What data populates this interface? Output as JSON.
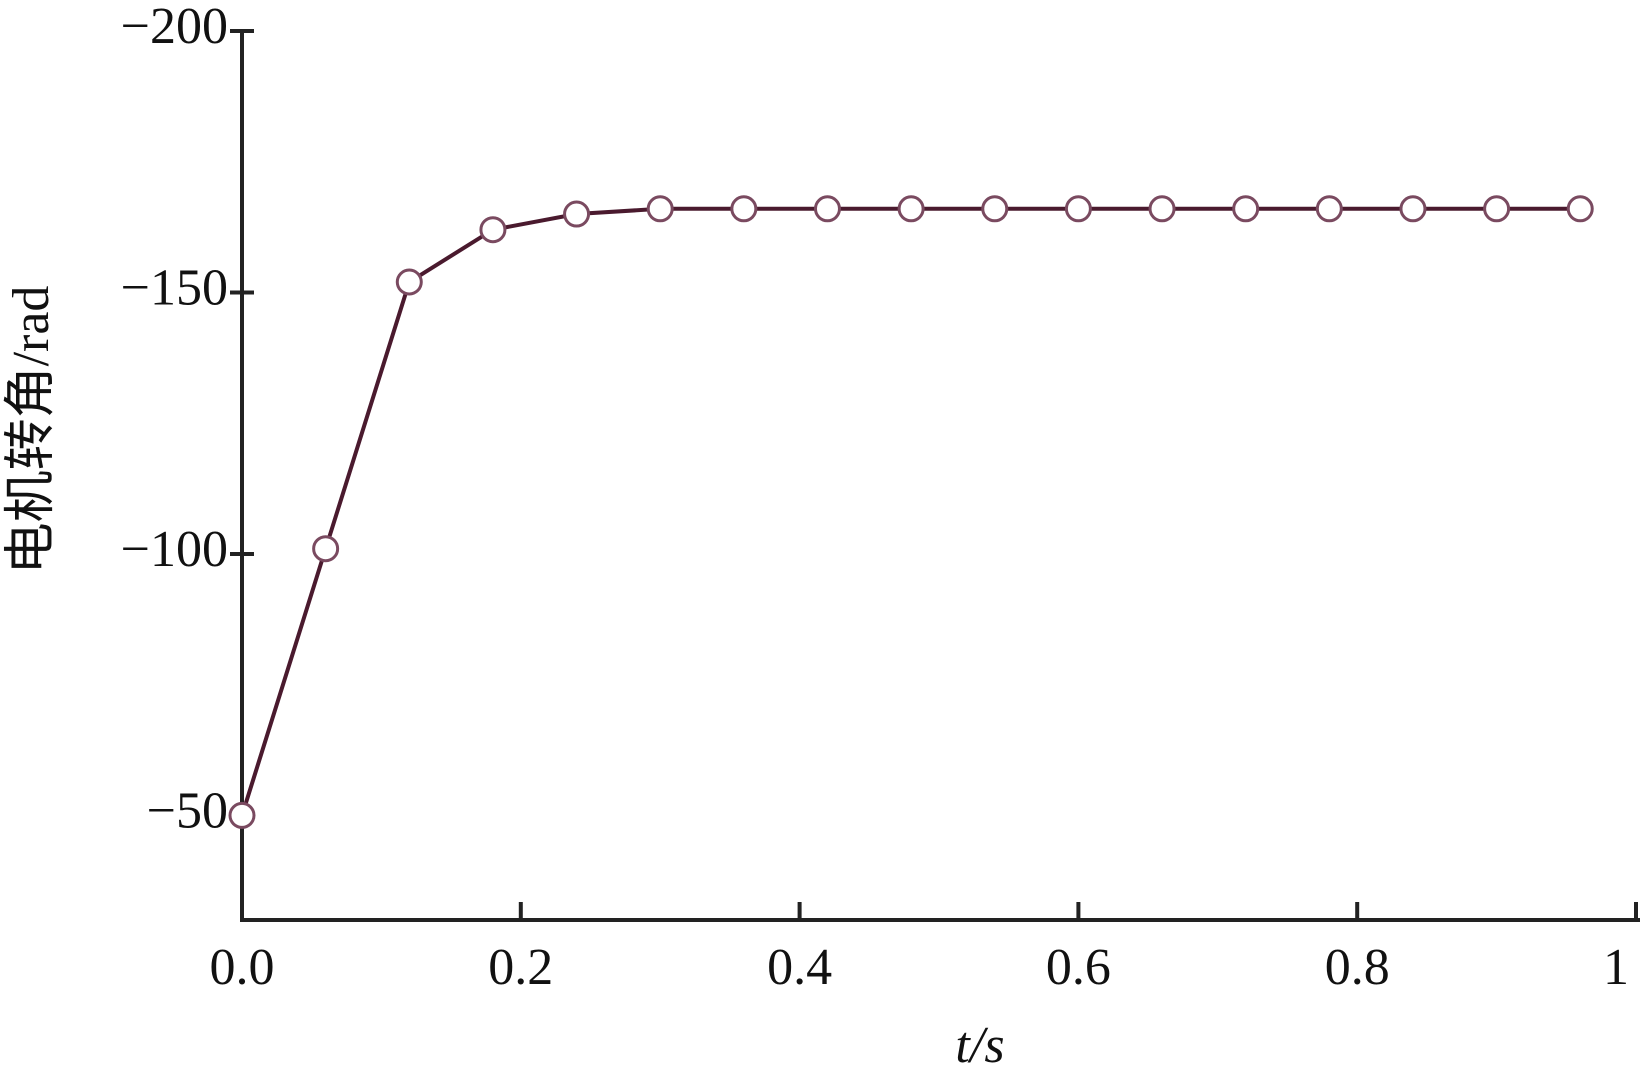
{
  "chart_data": {
    "type": "line",
    "x_label": "t/s",
    "y_label": "电机转角/rad",
    "x": [
      0,
      0.06,
      0.12,
      0.18,
      0.24,
      0.3,
      0.36,
      0.42,
      0.48,
      0.54,
      0.6,
      0.66,
      0.72,
      0.78,
      0.84,
      0.9,
      0.96
    ],
    "series": [
      {
        "color": "#4a1a2e",
        "values": [
          -50,
          -101,
          -152,
          -162,
          -165,
          -166,
          -166,
          -166,
          -166,
          -166,
          -166,
          -166,
          -166,
          -166,
          -166,
          -166,
          -166
        ]
      }
    ],
    "xlim": [
      0,
      1
    ],
    "xticks": [
      {
        "value": 0,
        "label": "0.0"
      },
      0.2,
      0.4,
      0.6,
      0.8,
      1
    ],
    "ylim": [
      -30,
      -200
    ],
    "yticks": [
      {
        "value": -200,
        "label": "−200"
      },
      {
        "value": -150,
        "label": "−150"
      },
      {
        "value": -100,
        "label": "−100"
      },
      {
        "value": -50,
        "label": "−50"
      }
    ],
    "grid": false
  }
}
